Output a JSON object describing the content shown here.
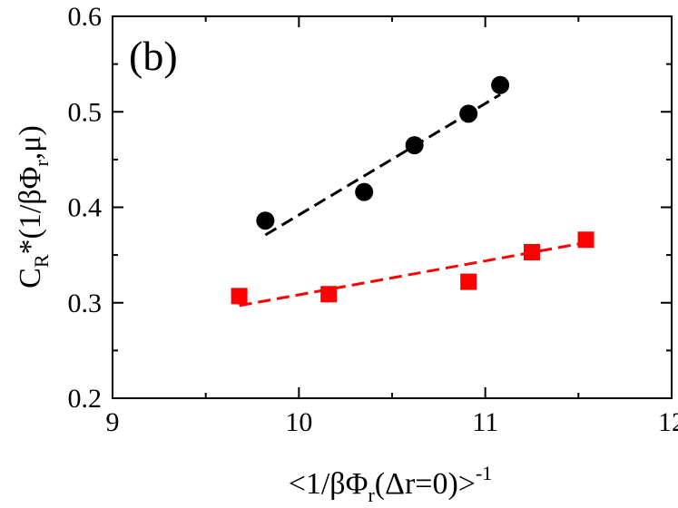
{
  "chart_data": {
    "type": "scatter",
    "panel_label": "(b)",
    "xlim": [
      9,
      12
    ],
    "ylim": [
      0.2,
      0.6
    ],
    "x_ticks": [
      9,
      10,
      11,
      12
    ],
    "y_ticks": [
      0.2,
      0.3,
      0.4,
      0.5,
      0.6
    ],
    "x_tick_labels": [
      "9",
      "10",
      "11",
      "12"
    ],
    "y_tick_labels": [
      "0.2",
      "0.3",
      "0.4",
      "0.5",
      "0.6"
    ],
    "xlabel": {
      "prefix": "<1/βΦ",
      "sub": "r",
      "middle": "(Δr=0)>",
      "sup": "-1"
    },
    "ylabel": {
      "base": "C",
      "sub1": "R",
      "mid": "*(1/βΦ",
      "sub2": "r",
      "tail": ",μ)"
    },
    "grid": false,
    "series": [
      {
        "name": "black circles",
        "marker": "circle",
        "color": "#000000",
        "x": [
          9.82,
          10.35,
          10.62,
          10.91,
          11.08
        ],
        "y": [
          0.386,
          0.416,
          0.465,
          0.498,
          0.528
        ],
        "fit": {
          "style": "dashed",
          "x": [
            9.82,
            11.08
          ],
          "y": [
            0.371,
            0.518
          ]
        }
      },
      {
        "name": "red squares",
        "marker": "square",
        "color": "#ff0000",
        "x": [
          9.68,
          10.16,
          10.91,
          11.25,
          11.54
        ],
        "y": [
          0.307,
          0.309,
          0.322,
          0.353,
          0.366
        ],
        "fit": {
          "style": "dashed",
          "x": [
            9.68,
            11.54
          ],
          "y": [
            0.297,
            0.363
          ]
        }
      }
    ]
  }
}
